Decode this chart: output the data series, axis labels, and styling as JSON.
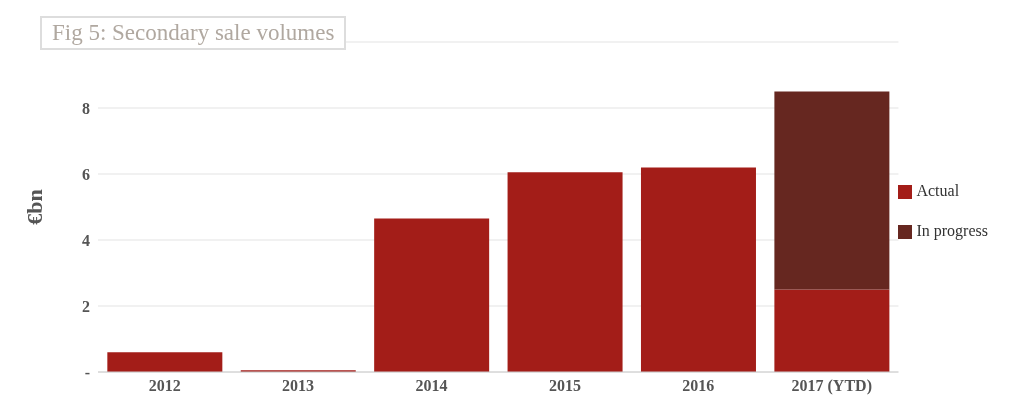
{
  "chart_data": {
    "type": "bar",
    "title": "Fig 5: Secondary sale volumes",
    "ylabel": "€bn",
    "categories": [
      "2012",
      "2013",
      "2014",
      "2015",
      "2016",
      "2017 (YTD)"
    ],
    "series": [
      {
        "name": "Actual",
        "color": "#a31d18",
        "values": [
          0.6,
          0.05,
          4.65,
          6.05,
          6.2,
          2.5
        ]
      },
      {
        "name": "In progress",
        "color": "#662720",
        "values": [
          null,
          null,
          null,
          null,
          null,
          6.0
        ]
      }
    ],
    "stacked": true,
    "ylim": [
      0,
      10
    ],
    "yticks": [
      {
        "value": 0,
        "label": "-"
      },
      2,
      4,
      6,
      8,
      {
        "value": 10,
        "label": null
      }
    ],
    "grid": "y",
    "legend": "right"
  }
}
